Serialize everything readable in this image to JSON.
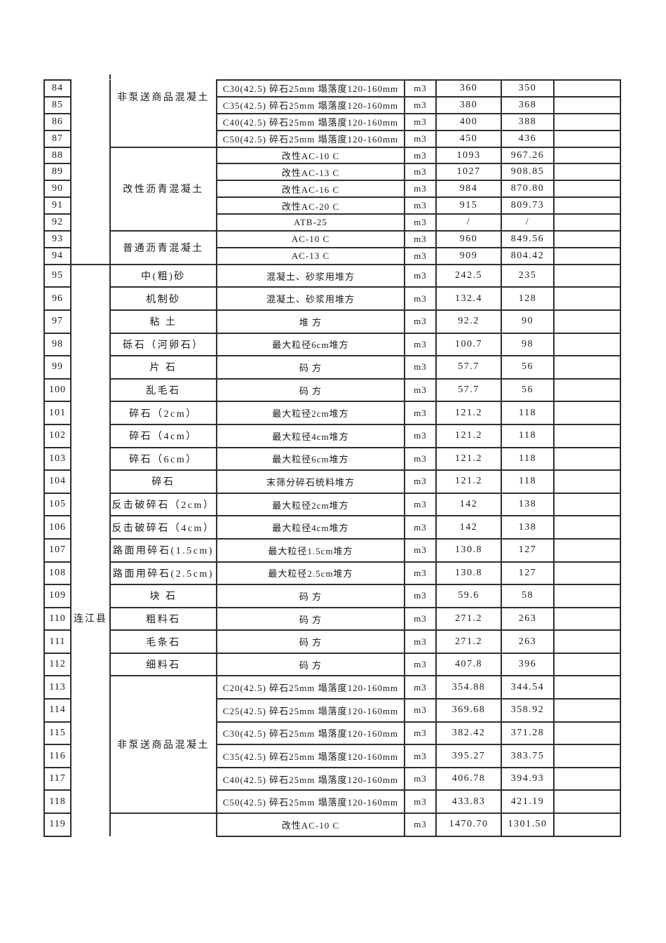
{
  "colors": {
    "page_background": "#ffffff",
    "text": "#1a1a1a",
    "border": "#2f2f2f"
  },
  "table": {
    "region_spans": [
      {
        "row": 84,
        "span": 11,
        "label": "",
        "open_top": true
      },
      {
        "row": 95,
        "span": 25,
        "label": "连江县",
        "open_bottom": true
      }
    ],
    "material_spans": [
      {
        "row": 84,
        "span": 4,
        "label": "非泵送商品混凝土",
        "open_top": true
      },
      {
        "row": 88,
        "span": 5,
        "label": "改性沥青混凝土"
      },
      {
        "row": 93,
        "span": 2,
        "label": "普通沥青混凝土"
      },
      {
        "row": 95,
        "span": 1,
        "label": "中(粗)砂"
      },
      {
        "row": 96,
        "span": 1,
        "label": "机制砂"
      },
      {
        "row": 97,
        "span": 1,
        "label": "粘 土"
      },
      {
        "row": 98,
        "span": 1,
        "label": "砾石（河卵石）"
      },
      {
        "row": 99,
        "span": 1,
        "label": "片 石"
      },
      {
        "row": 100,
        "span": 1,
        "label": "乱毛石"
      },
      {
        "row": 101,
        "span": 1,
        "label": "碎石（2cm）"
      },
      {
        "row": 102,
        "span": 1,
        "label": "碎石（4cm）"
      },
      {
        "row": 103,
        "span": 1,
        "label": "碎石（6cm）"
      },
      {
        "row": 104,
        "span": 1,
        "label": "碎石"
      },
      {
        "row": 105,
        "span": 1,
        "label": "反击破碎石（2cm）"
      },
      {
        "row": 106,
        "span": 1,
        "label": "反击破碎石（4cm）"
      },
      {
        "row": 107,
        "span": 1,
        "label": "路面用碎石(1.5cm)"
      },
      {
        "row": 108,
        "span": 1,
        "label": "路面用碎石(2.5cm)"
      },
      {
        "row": 109,
        "span": 1,
        "label": "块 石"
      },
      {
        "row": 110,
        "span": 1,
        "label": "粗料石"
      },
      {
        "row": 111,
        "span": 1,
        "label": "毛条石"
      },
      {
        "row": 112,
        "span": 1,
        "label": "细料石"
      },
      {
        "row": 113,
        "span": 6,
        "label": "非泵送商品混凝土"
      },
      {
        "row": 119,
        "span": 1,
        "label": "",
        "open_bottom": true
      }
    ],
    "rows": [
      {
        "no": "84",
        "spec": "C30(42.5) 碎石25mm 塌落度120-160mm",
        "unit": "m3",
        "price1": "360",
        "price2": "350"
      },
      {
        "no": "85",
        "spec": "C35(42.5) 碎石25mm 塌落度120-160mm",
        "unit": "m3",
        "price1": "380",
        "price2": "368"
      },
      {
        "no": "86",
        "spec": "C40(42.5) 碎石25mm 塌落度120-160mm",
        "unit": "m3",
        "price1": "400",
        "price2": "388"
      },
      {
        "no": "87",
        "spec": "C50(42.5) 碎石25mm 塌落度120-160mm",
        "unit": "m3",
        "price1": "450",
        "price2": "436"
      },
      {
        "no": "88",
        "spec": "改性AC-10 C",
        "unit": "m3",
        "price1": "1093",
        "price2": "967.26"
      },
      {
        "no": "89",
        "spec": "改性AC-13 C",
        "unit": "m3",
        "price1": "1027",
        "price2": "908.85"
      },
      {
        "no": "90",
        "spec": "改性AC-16 C",
        "unit": "m3",
        "price1": "984",
        "price2": "870.80"
      },
      {
        "no": "91",
        "spec": "改性AC-20 C",
        "unit": "m3",
        "price1": "915",
        "price2": "809.73"
      },
      {
        "no": "92",
        "spec": "ATB-25",
        "unit": "m3",
        "price1": "/",
        "price2": "/"
      },
      {
        "no": "93",
        "spec": "AC-10 C",
        "unit": "m3",
        "price1": "960",
        "price2": "849.56"
      },
      {
        "no": "94",
        "spec": "AC-13 C",
        "unit": "m3",
        "price1": "909",
        "price2": "804.42"
      },
      {
        "no": "95",
        "spec": "混凝土、砂浆用堆方",
        "unit": "m3",
        "price1": "242.5",
        "price2": "235"
      },
      {
        "no": "96",
        "spec": "混凝土、砂浆用堆方",
        "unit": "m3",
        "price1": "132.4",
        "price2": "128"
      },
      {
        "no": "97",
        "spec": "堆 方",
        "unit": "m3",
        "price1": "92.2",
        "price2": "90"
      },
      {
        "no": "98",
        "spec": "最大粒径6cm堆方",
        "unit": "m3",
        "price1": "100.7",
        "price2": "98"
      },
      {
        "no": "99",
        "spec": "码 方",
        "unit": "m3",
        "price1": "57.7",
        "price2": "56"
      },
      {
        "no": "100",
        "spec": "码 方",
        "unit": "m3",
        "price1": "57.7",
        "price2": "56"
      },
      {
        "no": "101",
        "spec": "最大粒径2cm堆方",
        "unit": "m3",
        "price1": "121.2",
        "price2": "118"
      },
      {
        "no": "102",
        "spec": "最大粒径4cm堆方",
        "unit": "m3",
        "price1": "121.2",
        "price2": "118"
      },
      {
        "no": "103",
        "spec": "最大粒径6cm堆方",
        "unit": "m3",
        "price1": "121.2",
        "price2": "118"
      },
      {
        "no": "104",
        "spec": "末筛分碎石统料堆方",
        "unit": "m3",
        "price1": "121.2",
        "price2": "118"
      },
      {
        "no": "105",
        "spec": "最大粒径2cm堆方",
        "unit": "m3",
        "price1": "142",
        "price2": "138"
      },
      {
        "no": "106",
        "spec": "最大粒径4cm堆方",
        "unit": "m3",
        "price1": "142",
        "price2": "138"
      },
      {
        "no": "107",
        "spec": "最大粒径1.5cm堆方",
        "unit": "m3",
        "price1": "130.8",
        "price2": "127"
      },
      {
        "no": "108",
        "spec": "最大粒径2.5cm堆方",
        "unit": "m3",
        "price1": "130.8",
        "price2": "127"
      },
      {
        "no": "109",
        "spec": "码 方",
        "unit": "m3",
        "price1": "59.6",
        "price2": "58"
      },
      {
        "no": "110",
        "spec": "码 方",
        "unit": "m3",
        "price1": "271.2",
        "price2": "263"
      },
      {
        "no": "111",
        "spec": "码 方",
        "unit": "m3",
        "price1": "271.2",
        "price2": "263"
      },
      {
        "no": "112",
        "spec": "码 方",
        "unit": "m3",
        "price1": "407.8",
        "price2": "396"
      },
      {
        "no": "113",
        "spec": "C20(42.5) 碎石25mm 塌落度120-160mm",
        "unit": "m3",
        "price1": "354.88",
        "price2": "344.54"
      },
      {
        "no": "114",
        "spec": "C25(42.5) 碎石25mm 塌落度120-160mm",
        "unit": "m3",
        "price1": "369.68",
        "price2": "358.92"
      },
      {
        "no": "115",
        "spec": "C30(42.5) 碎石25mm 塌落度120-160mm",
        "unit": "m3",
        "price1": "382.42",
        "price2": "371.28"
      },
      {
        "no": "116",
        "spec": "C35(42.5) 碎石25mm 塌落度120-160mm",
        "unit": "m3",
        "price1": "395.27",
        "price2": "383.75"
      },
      {
        "no": "117",
        "spec": "C40(42.5) 碎石25mm 塌落度120-160mm",
        "unit": "m3",
        "price1": "406.78",
        "price2": "394.93"
      },
      {
        "no": "118",
        "spec": "C50(42.5) 碎石25mm 塌落度120-160mm",
        "unit": "m3",
        "price1": "433.83",
        "price2": "421.19"
      },
      {
        "no": "119",
        "spec": "改性AC-10 C",
        "unit": "m3",
        "price1": "1470.70",
        "price2": "1301.50"
      }
    ]
  }
}
